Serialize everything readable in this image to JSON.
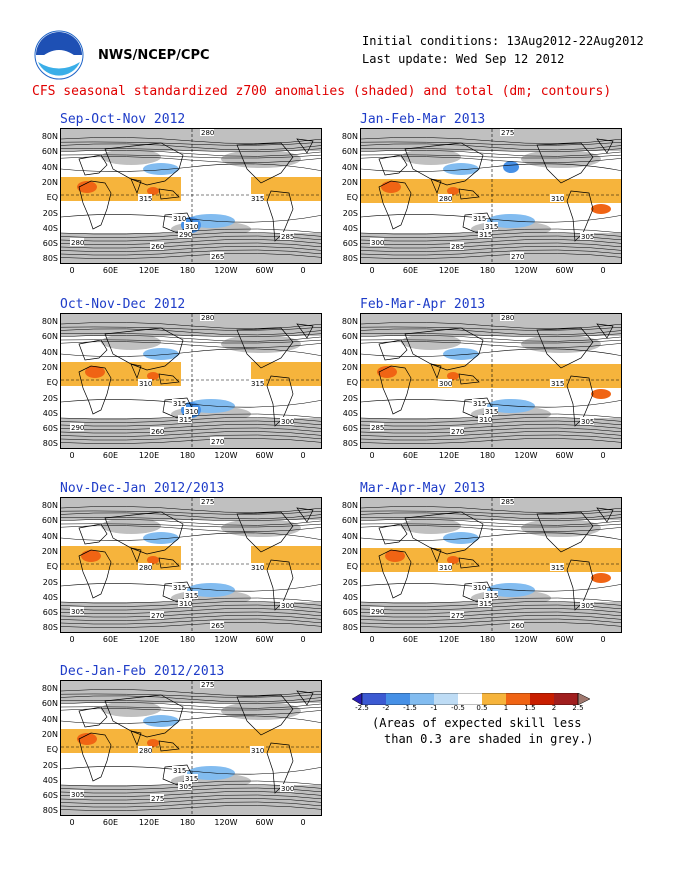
{
  "header": {
    "org": "NWS/NCEP/CPC",
    "init_conditions": "Initial conditions: 13Aug2012-22Aug2012",
    "last_update": "Last update: Wed Sep 12 2012",
    "title": "CFS seasonal standardized z700 anomalies (shaded) and total (dm; contours)",
    "logo_icon": "noaa-logo-icon"
  },
  "axes": {
    "lat_labels": [
      "80N",
      "60N",
      "40N",
      "20N",
      "EQ",
      "20S",
      "40S",
      "60S",
      "80S"
    ],
    "lon_labels": [
      "0",
      "60E",
      "120E",
      "180",
      "120W",
      "60W",
      "0"
    ]
  },
  "panels": [
    {
      "title": "Sep-Oct-Nov 2012",
      "contour_labels": [
        "280",
        "315",
        "315",
        "310",
        "310",
        "290",
        "285",
        "280",
        "260",
        "265"
      ]
    },
    {
      "title": "Jan-Feb-Mar 2013",
      "contour_labels": [
        "275",
        "280",
        "310",
        "315",
        "315",
        "315",
        "305",
        "300",
        "285",
        "270"
      ]
    },
    {
      "title": "Oct-Nov-Dec 2012",
      "contour_labels": [
        "280",
        "310",
        "315",
        "315",
        "310",
        "315",
        "300",
        "290",
        "260",
        "270"
      ]
    },
    {
      "title": "Feb-Mar-Apr 2013",
      "contour_labels": [
        "280",
        "300",
        "315",
        "315",
        "315",
        "310",
        "305",
        "285",
        "270"
      ]
    },
    {
      "title": "Nov-Dec-Jan 2012/2013",
      "contour_labels": [
        "275",
        "280",
        "310",
        "315",
        "315",
        "310",
        "300",
        "305",
        "270",
        "265"
      ]
    },
    {
      "title": "Mar-Apr-May 2013",
      "contour_labels": [
        "285",
        "310",
        "315",
        "310",
        "315",
        "315",
        "305",
        "290",
        "275",
        "260"
      ]
    },
    {
      "title": "Dec-Jan-Feb 2012/2013",
      "contour_labels": [
        "275",
        "280",
        "310",
        "315",
        "315",
        "305",
        "300",
        "305",
        "275"
      ]
    }
  ],
  "colorbar": {
    "labels": [
      "-2.5",
      "-2",
      "-1.5",
      "-1",
      "-0.5",
      "0.5",
      "1",
      "1.5",
      "2",
      "2.5"
    ],
    "colors": [
      "#2a1cb4",
      "#3c5ad2",
      "#4690e6",
      "#82bcf0",
      "#bedcf5",
      "#ffffff",
      "#f6b43c",
      "#f06414",
      "#c81e00",
      "#a01e1e",
      "#a0786e"
    ],
    "note_line1": "(Areas of expected skill less",
    "note_line2": "than 0.3 are shaded in grey.)"
  },
  "colors": {
    "grey": "#c0c0c0",
    "orange": "#f6b43c",
    "red": "#f06414",
    "lightblue": "#82bcf0",
    "blue": "#4690e6"
  }
}
